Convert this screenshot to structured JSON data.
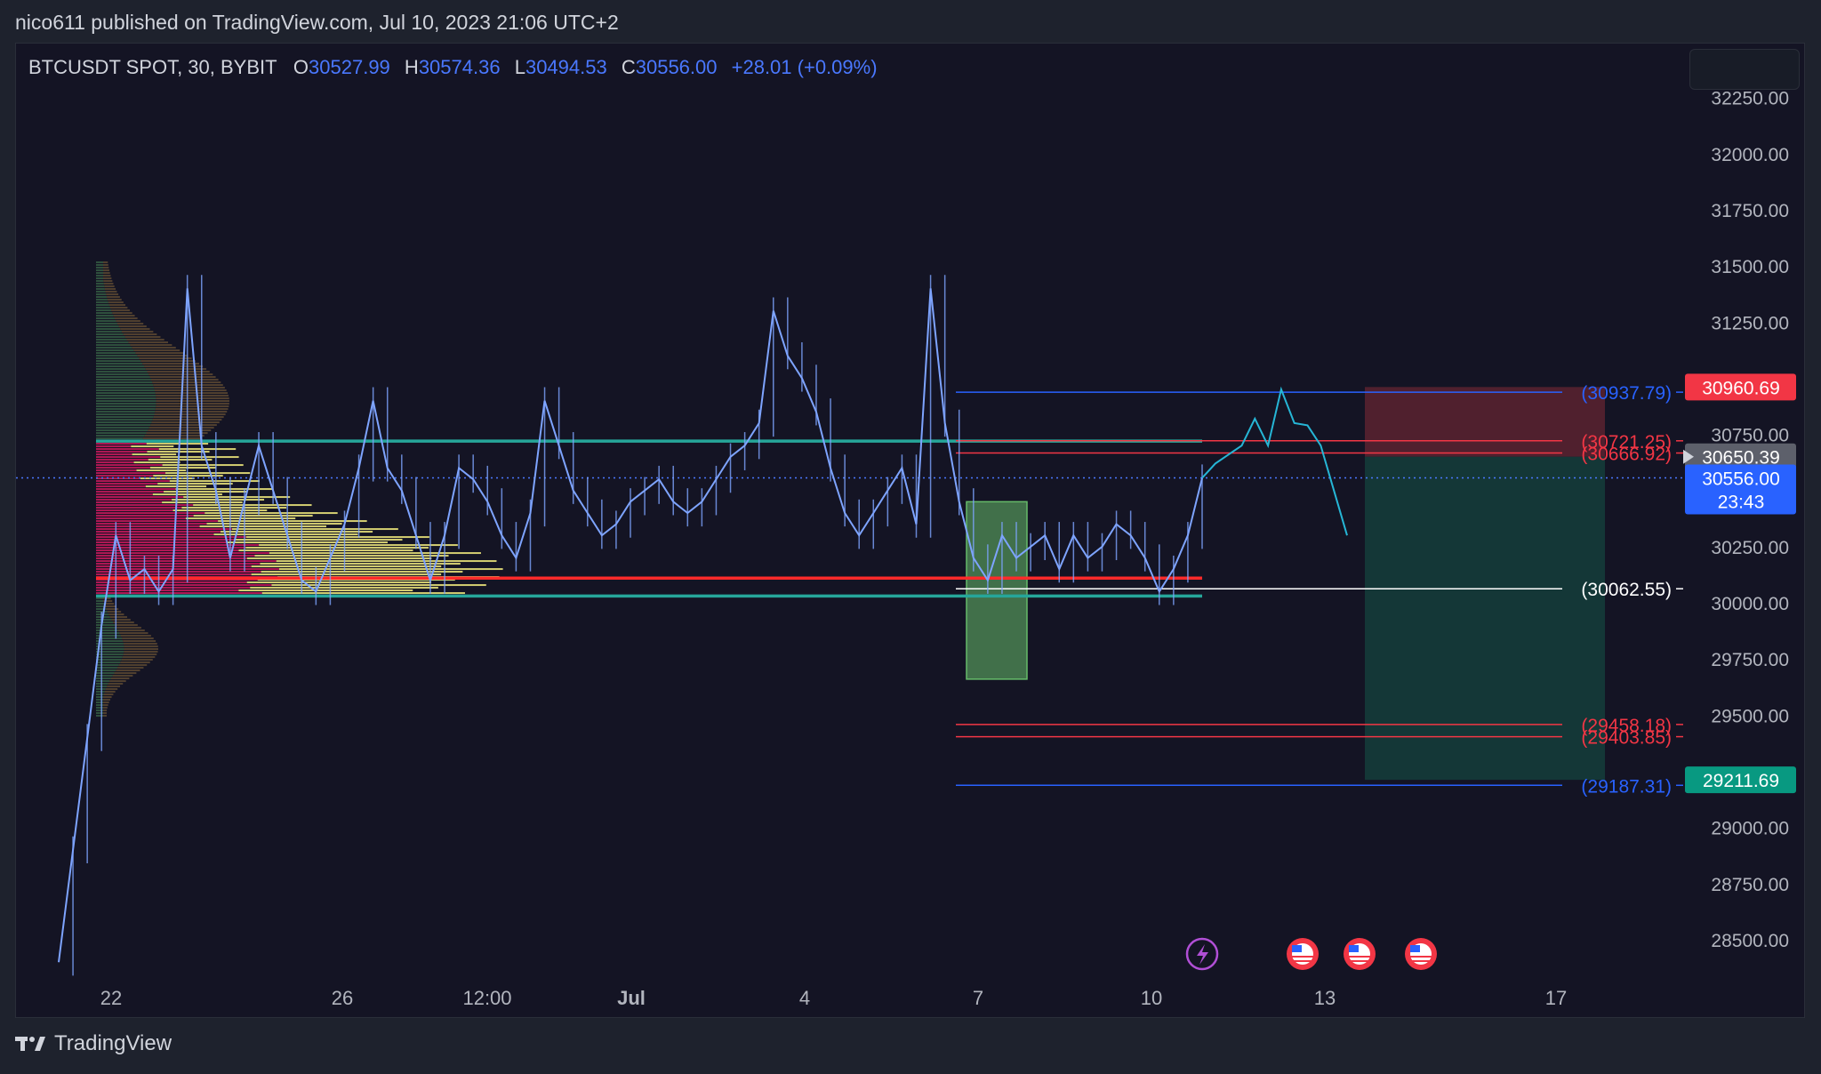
{
  "header": {
    "publish_line": "nico611 published on TradingView.com, Jul 10, 2023 21:06 UTC+2"
  },
  "legend": {
    "symbol": "BTCUSDT SPOT, 30, BYBIT",
    "open_label": "O",
    "open": "30527.99",
    "high_label": "H",
    "high": "30574.36",
    "low_label": "L",
    "low": "30494.53",
    "close_label": "C",
    "close": "30556.00",
    "change": "+28.01 (+0.09%)"
  },
  "footer": {
    "brand": "TradingView"
  },
  "colors": {
    "background": "#141424",
    "candles": "#7ea4ff",
    "ref_blue": "#2962ff",
    "ref_red": "#f23645",
    "ref_teal": "#26a69a",
    "poc_red": "#ff2a2a",
    "profile_pink": "#c2185b",
    "profile_yellow": "#e8e27a",
    "projection": "#26b6d6",
    "risk_zone": "#5a2230",
    "reward_zone": "#143d3b",
    "entry_box": "#66bb6a",
    "price_tag_blue": "#2962ff",
    "price_tag_red": "#f23645",
    "price_tag_teal": "#089981"
  },
  "chart_data": {
    "type": "line",
    "title": "BTCUSDT SPOT, 30, BYBIT",
    "xlabel": "",
    "ylabel": "",
    "ylim": [
      28250,
      32500
    ],
    "grid": false,
    "x_tick_labels": [
      "22",
      "26",
      "12:00",
      "Jul",
      "4",
      "7",
      "10",
      "13",
      "17"
    ],
    "y_tick_labels": [
      "32250.00",
      "32000.00",
      "31750.00",
      "31500.00",
      "31250.00",
      "30750.00",
      "30250.00",
      "30000.00",
      "29750.00",
      "29500.00",
      "29000.00",
      "28750.00",
      "28500.00"
    ],
    "series": [
      {
        "values": [
          28400,
          28900,
          29400,
          29900,
          30300,
          30100,
          30150,
          30050,
          30150,
          31400,
          30700,
          30500,
          30200,
          30450,
          30700,
          30500,
          30300,
          30100,
          30050,
          30200,
          30350,
          30600,
          30900,
          30600,
          30500,
          30300,
          30100,
          30300,
          30600,
          30550,
          30450,
          30300,
          30200,
          30400,
          30900,
          30700,
          30500,
          30400,
          30300,
          30350,
          30450,
          30500,
          30550,
          30450,
          30400,
          30450,
          30550,
          30650,
          30700,
          30800,
          31300,
          31100,
          31000,
          30850,
          30600,
          30400,
          30300,
          30400,
          30500,
          30600,
          30350,
          31400,
          30800,
          30450,
          30200,
          30100,
          30300,
          30200,
          30250,
          30300,
          30150,
          30300,
          30200,
          30250,
          30350,
          30300,
          30200,
          30050,
          30150,
          30300,
          30556
        ]
      },
      {
        "name": "projection",
        "values": [
          30556,
          30620,
          30660,
          30700,
          30820,
          30700,
          30950,
          30800,
          30790,
          30700,
          30500,
          30300
        ]
      }
    ],
    "horizontal_levels": [
      {
        "label": "(30937.79)",
        "value": 30937.79,
        "color": "#2962ff"
      },
      {
        "label": "(30721.25)",
        "value": 30721.25,
        "color": "#f23645"
      },
      {
        "label": "(30666.92)",
        "value": 30666.92,
        "color": "#f23645"
      },
      {
        "label": "(30062.55)",
        "value": 30062.55,
        "color": "#ffffff"
      },
      {
        "label": "(29458.18)",
        "value": 29458.18,
        "color": "#f23645"
      },
      {
        "label": "(29403.85)",
        "value": 29403.85,
        "color": "#f23645"
      },
      {
        "label": "(29187.31)",
        "value": 29187.31,
        "color": "#2962ff"
      }
    ],
    "value_area_high": 30720,
    "value_area_low": 30030,
    "point_of_control": 30110,
    "price_tags": [
      {
        "text": "30960.69",
        "value": 30960.69,
        "color": "#f23645"
      },
      {
        "text": "30650.39",
        "value": 30650.39,
        "color": "#5d606b"
      },
      {
        "text": "30556.00",
        "countdown": "23:43",
        "value": 30556.0,
        "color": "#2962ff"
      },
      {
        "text": "29211.69",
        "value": 29211.69,
        "color": "#089981"
      }
    ],
    "position": {
      "entry": 30650.39,
      "stop": 30960.69,
      "target": 29211.69
    },
    "entry_zone": {
      "top": 30450,
      "bottom": 29660
    }
  }
}
